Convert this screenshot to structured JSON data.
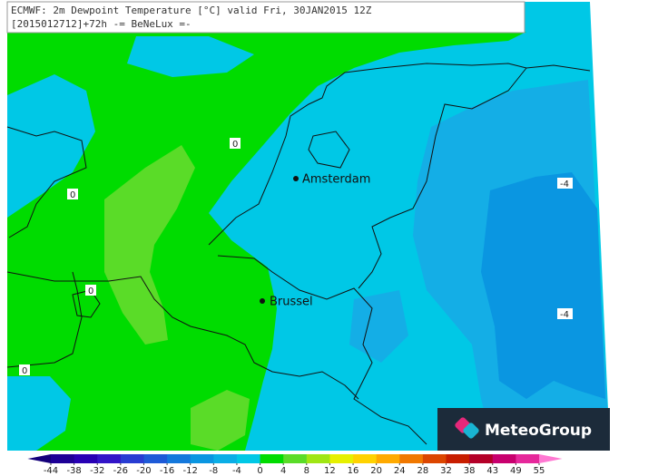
{
  "header": {
    "line1": "ECMWF: 2m Dewpoint Temperature [°C] valid Fri, 30JAN2015 12Z",
    "line2": "[2015012712]+72h -= BeNeLux =-"
  },
  "cities": [
    {
      "label": "Amsterdam"
    },
    {
      "label": "Brussel"
    }
  ],
  "contour_labels": [
    "0",
    "0",
    "0",
    "0",
    "-4",
    "-4"
  ],
  "logo": "MeteoGroup",
  "colorbar": {
    "ticks": [
      -44,
      -38,
      -32,
      -26,
      -20,
      -16,
      -12,
      -8,
      -4,
      0,
      4,
      8,
      12,
      16,
      20,
      24,
      28,
      32,
      38,
      43,
      49,
      55
    ],
    "colors": [
      "#14007a",
      "#1e0096",
      "#2800b4",
      "#3214c8",
      "#283cd2",
      "#1e5ad7",
      "#1478dc",
      "#0a96e1",
      "#0aaee6",
      "#00c8e6",
      "#00dc00",
      "#5adc28",
      "#a0e614",
      "#e6f000",
      "#ffd200",
      "#ffaa00",
      "#f07800",
      "#dc4600",
      "#c81e00",
      "#b40028",
      "#c8006e",
      "#e6289b",
      "#ff78d2"
    ]
  }
}
